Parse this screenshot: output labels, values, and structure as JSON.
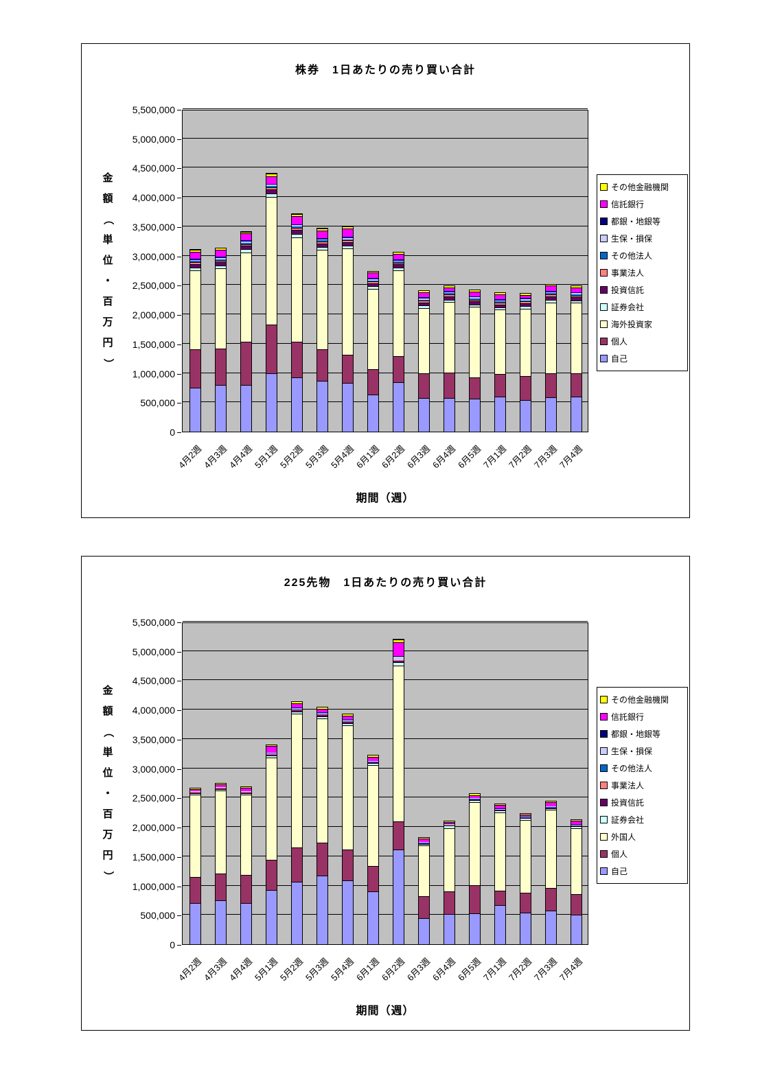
{
  "page": {
    "background": "#FFFFFF",
    "plot_background": "#C0C0C0"
  },
  "chart_data": [
    {
      "type": "bar",
      "stacked": true,
      "title": "株券　1日あたりの売り買い合計",
      "xlabel": "期間（週）",
      "ylabel": "金額（単位・百万円）",
      "ylim": [
        0,
        5500000
      ],
      "grid_step": 500000,
      "grid": true,
      "legend_position": "right",
      "y_ticks": [
        "5,500,000",
        "5,000,000",
        "4,500,000",
        "4,000,000",
        "3,500,000",
        "3,000,000",
        "2,500,000",
        "2,000,000",
        "1,500,000",
        "1,000,000",
        "500,000",
        "0"
      ],
      "categories": [
        "4月2週",
        "4月3週",
        "4月4週",
        "5月1週",
        "5月2週",
        "5月3週",
        "5月4週",
        "6月1週",
        "6月2週",
        "6月3週",
        "6月4週",
        "6月5週",
        "7月1週",
        "7月2週",
        "7月3週",
        "7月4週"
      ],
      "legend": [
        "その他金融機関",
        "信託銀行",
        "都銀・地銀等",
        "生保・損保",
        "その他法人",
        "事業法人",
        "投資信託",
        "証券会社",
        "海外投資家",
        "個人",
        "自己"
      ],
      "series": [
        {
          "name": "自己",
          "color": "#9999FF",
          "values": [
            750000,
            800000,
            800000,
            1000000,
            920000,
            870000,
            830000,
            630000,
            840000,
            570000,
            570000,
            560000,
            600000,
            540000,
            590000,
            600000
          ]
        },
        {
          "name": "個人",
          "color": "#993366",
          "values": [
            650000,
            620000,
            730000,
            820000,
            610000,
            530000,
            480000,
            430000,
            450000,
            430000,
            440000,
            360000,
            380000,
            410000,
            400000,
            400000
          ]
        },
        {
          "name": "海外投資家",
          "color": "#FFFFCC",
          "values": [
            1350000,
            1360000,
            1520000,
            2180000,
            1780000,
            1700000,
            1810000,
            1380000,
            1460000,
            1110000,
            1200000,
            1210000,
            1100000,
            1150000,
            1210000,
            1200000
          ]
        },
        {
          "name": "証券会社",
          "color": "#CCFFFF",
          "values": [
            50000,
            50000,
            60000,
            60000,
            60000,
            50000,
            50000,
            40000,
            50000,
            40000,
            40000,
            40000,
            40000,
            40000,
            50000,
            40000
          ]
        },
        {
          "name": "投資信託",
          "color": "#660066",
          "values": [
            60000,
            60000,
            60000,
            70000,
            70000,
            60000,
            60000,
            50000,
            50000,
            50000,
            60000,
            50000,
            50000,
            50000,
            60000,
            50000
          ]
        },
        {
          "name": "事業法人",
          "color": "#FF8080",
          "values": [
            30000,
            30000,
            30000,
            40000,
            40000,
            30000,
            30000,
            30000,
            30000,
            30000,
            30000,
            30000,
            30000,
            30000,
            30000,
            30000
          ]
        },
        {
          "name": "その他法人",
          "color": "#0066CC",
          "values": [
            20000,
            20000,
            20000,
            20000,
            20000,
            20000,
            20000,
            20000,
            20000,
            20000,
            20000,
            20000,
            20000,
            20000,
            20000,
            20000
          ]
        },
        {
          "name": "生保・損保",
          "color": "#CCCCFF",
          "values": [
            20000,
            20000,
            20000,
            20000,
            20000,
            20000,
            20000,
            20000,
            20000,
            20000,
            20000,
            20000,
            20000,
            20000,
            20000,
            20000
          ]
        },
        {
          "name": "都銀・地銀等",
          "color": "#000080",
          "values": [
            20000,
            20000,
            20000,
            20000,
            20000,
            20000,
            20000,
            20000,
            20000,
            20000,
            20000,
            20000,
            20000,
            20000,
            20000,
            20000
          ]
        },
        {
          "name": "信託銀行",
          "color": "#FF00FF",
          "values": [
            120000,
            120000,
            120000,
            130000,
            140000,
            130000,
            150000,
            90000,
            90000,
            90000,
            60000,
            80000,
            80000,
            50000,
            90000,
            80000
          ]
        },
        {
          "name": "その他金融機関",
          "color": "#FFFF00",
          "values": [
            30000,
            20000,
            30000,
            40000,
            30000,
            30000,
            30000,
            20000,
            20000,
            20000,
            20000,
            20000,
            20000,
            20000,
            20000,
            20000
          ]
        }
      ]
    },
    {
      "type": "bar",
      "stacked": true,
      "title": "225先物　1日あたりの売り買い合計",
      "xlabel": "期間（週）",
      "ylabel": "金額（単位・百万円）",
      "ylim": [
        0,
        5500000
      ],
      "grid_step": 500000,
      "grid": true,
      "legend_position": "right",
      "y_ticks": [
        "5,500,000",
        "5,000,000",
        "4,500,000",
        "4,000,000",
        "3,500,000",
        "3,000,000",
        "2,500,000",
        "2,000,000",
        "1,500,000",
        "1,000,000",
        "500,000",
        "0"
      ],
      "categories": [
        "4月2週",
        "4月3週",
        "4月4週",
        "5月1週",
        "5月2週",
        "5月3週",
        "5月4週",
        "6月1週",
        "6月2週",
        "6月3週",
        "6月4週",
        "6月5週",
        "7月1週",
        "7月2週",
        "7月3週",
        "7月4週"
      ],
      "legend": [
        "その他金融機関",
        "信託銀行",
        "都銀・地銀等",
        "生保・損保",
        "その他法人",
        "事業法人",
        "投資信託",
        "証券会社",
        "外国人",
        "個人",
        "自己"
      ],
      "series": [
        {
          "name": "自己",
          "color": "#9999FF",
          "values": [
            700000,
            750000,
            700000,
            930000,
            1060000,
            1170000,
            1090000,
            900000,
            1620000,
            450000,
            520000,
            530000,
            670000,
            540000,
            570000,
            500000
          ]
        },
        {
          "name": "個人",
          "color": "#993366",
          "values": [
            450000,
            450000,
            480000,
            510000,
            590000,
            560000,
            520000,
            440000,
            480000,
            370000,
            380000,
            480000,
            240000,
            340000,
            390000,
            350000
          ]
        },
        {
          "name": "外国人",
          "color": "#FFFFCC",
          "values": [
            1400000,
            1420000,
            1370000,
            1740000,
            2280000,
            2120000,
            2120000,
            1710000,
            2650000,
            860000,
            1080000,
            1410000,
            1340000,
            1240000,
            1330000,
            1130000
          ]
        },
        {
          "name": "証券会社",
          "color": "#CCFFFF",
          "values": [
            30000,
            30000,
            30000,
            40000,
            40000,
            40000,
            40000,
            40000,
            60000,
            30000,
            40000,
            40000,
            30000,
            30000,
            30000,
            30000
          ]
        },
        {
          "name": "投資信託",
          "color": "#660066",
          "values": [
            10000,
            10000,
            10000,
            10000,
            20000,
            20000,
            20000,
            10000,
            20000,
            10000,
            10000,
            10000,
            10000,
            10000,
            10000,
            10000
          ]
        },
        {
          "name": "事業法人",
          "color": "#FF8080",
          "values": [
            5000,
            5000,
            5000,
            10000,
            10000,
            10000,
            10000,
            5000,
            10000,
            5000,
            5000,
            5000,
            5000,
            5000,
            5000,
            5000
          ]
        },
        {
          "name": "その他法人",
          "color": "#0066CC",
          "values": [
            5000,
            5000,
            5000,
            10000,
            10000,
            10000,
            10000,
            5000,
            10000,
            5000,
            5000,
            5000,
            5000,
            5000,
            5000,
            5000
          ]
        },
        {
          "name": "生保・損保",
          "color": "#CCCCFF",
          "values": [
            10000,
            10000,
            10000,
            10000,
            20000,
            20000,
            20000,
            10000,
            60000,
            10000,
            10000,
            10000,
            10000,
            10000,
            10000,
            10000
          ]
        },
        {
          "name": "都銀・地銀等",
          "color": "#000080",
          "values": [
            5000,
            5000,
            5000,
            10000,
            10000,
            10000,
            10000,
            5000,
            10000,
            5000,
            5000,
            5000,
            5000,
            5000,
            5000,
            5000
          ]
        },
        {
          "name": "信託銀行",
          "color": "#FF00FF",
          "values": [
            30000,
            40000,
            50000,
            110000,
            70000,
            60000,
            60000,
            70000,
            230000,
            60000,
            30000,
            50000,
            60000,
            30000,
            70000,
            60000
          ]
        },
        {
          "name": "その他金融機関",
          "color": "#FFFF00",
          "values": [
            15000,
            15000,
            15000,
            20000,
            20000,
            20000,
            20000,
            20000,
            50000,
            15000,
            15000,
            20000,
            15000,
            15000,
            15000,
            15000
          ]
        }
      ]
    }
  ]
}
